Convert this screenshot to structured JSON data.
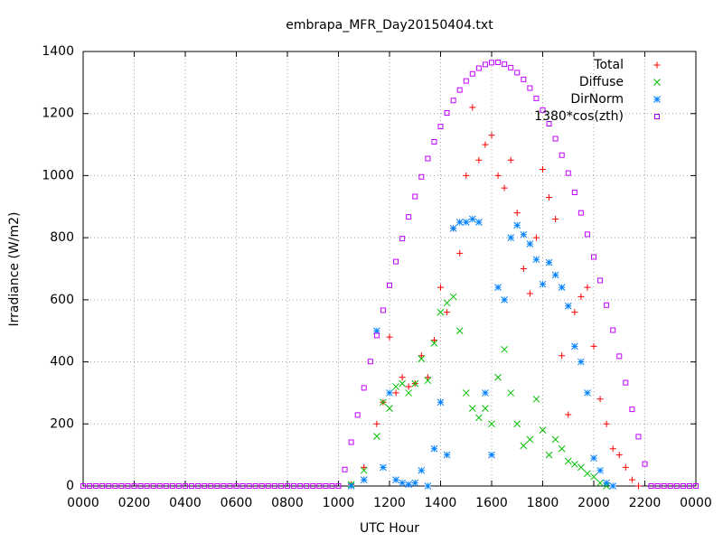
{
  "chart_data": {
    "type": "scatter",
    "title": "embrapa_MFR_Day20150404.txt",
    "x_label": "UTC Hour",
    "y_label": "Irradiance (W/m2)",
    "xlim": [
      0,
      24
    ],
    "ylim": [
      0,
      1400
    ],
    "xticks": [
      {
        "value": 0,
        "label": "0000"
      },
      {
        "value": 2,
        "label": "0200"
      },
      {
        "value": 4,
        "label": "0400"
      },
      {
        "value": 6,
        "label": "0600"
      },
      {
        "value": 8,
        "label": "0800"
      },
      {
        "value": 10,
        "label": "1000"
      },
      {
        "value": 12,
        "label": "1200"
      },
      {
        "value": 14,
        "label": "1400"
      },
      {
        "value": 16,
        "label": "1600"
      },
      {
        "value": 18,
        "label": "1800"
      },
      {
        "value": 20,
        "label": "2000"
      },
      {
        "value": 22,
        "label": "2200"
      },
      {
        "value": 24,
        "label": "0000"
      }
    ],
    "yticks": [
      0,
      200,
      400,
      600,
      800,
      1000,
      1200,
      1400
    ],
    "grid": true,
    "legend": "top-right",
    "series": [
      {
        "name": "Total",
        "color": "#ff0000",
        "marker": "plus",
        "x": [
          10.5,
          11,
          11.5,
          11.75,
          12,
          12.25,
          12.5,
          12.75,
          13,
          13.25,
          13.5,
          13.75,
          14,
          14.25,
          14.5,
          14.75,
          15,
          15.25,
          15.5,
          15.75,
          16,
          16.25,
          16.5,
          16.75,
          17,
          17.25,
          17.5,
          17.75,
          18,
          18.25,
          18.5,
          18.75,
          19,
          19.25,
          19.5,
          19.75,
          20,
          20.25,
          20.5,
          20.75,
          21,
          21.25,
          21.5,
          21.75
        ],
        "values": [
          5,
          60,
          200,
          270,
          480,
          300,
          350,
          320,
          330,
          420,
          350,
          470,
          640,
          560,
          830,
          750,
          1000,
          1220,
          1050,
          1100,
          1130,
          1000,
          960,
          1050,
          880,
          700,
          620,
          800,
          1020,
          930,
          860,
          420,
          230,
          560,
          610,
          640,
          450,
          280,
          200,
          120,
          100,
          60,
          20,
          0
        ]
      },
      {
        "name": "Diffuse",
        "color": "#00c000",
        "marker": "cross",
        "x": [
          10.5,
          11,
          11.5,
          11.75,
          12,
          12.25,
          12.5,
          12.75,
          13,
          13.25,
          13.5,
          13.75,
          14,
          14.25,
          14.5,
          14.75,
          15,
          15.25,
          15.5,
          15.75,
          16,
          16.25,
          16.5,
          16.75,
          17,
          17.25,
          17.5,
          17.75,
          18,
          18.25,
          18.5,
          18.75,
          19,
          19.25,
          19.5,
          19.75,
          20,
          20.25,
          20.5
        ],
        "values": [
          5,
          50,
          160,
          270,
          250,
          320,
          330,
          300,
          330,
          410,
          340,
          460,
          560,
          590,
          610,
          500,
          300,
          250,
          220,
          250,
          200,
          350,
          440,
          300,
          200,
          130,
          150,
          280,
          180,
          100,
          150,
          120,
          80,
          70,
          60,
          40,
          30,
          10,
          0
        ]
      },
      {
        "name": "DirNorm",
        "color": "#0080ff",
        "marker": "star",
        "x": [
          10.5,
          11,
          11.5,
          11.75,
          12,
          12.25,
          12.5,
          12.75,
          13,
          13.25,
          13.5,
          13.75,
          14,
          14.25,
          14.5,
          14.75,
          15,
          15.25,
          15.5,
          15.75,
          16,
          16.25,
          16.5,
          16.75,
          17,
          17.25,
          17.5,
          17.75,
          18,
          18.25,
          18.5,
          18.75,
          19,
          19.25,
          19.5,
          19.75,
          20,
          20.25,
          20.5,
          20.75
        ],
        "values": [
          0,
          20,
          500,
          60,
          300,
          20,
          10,
          5,
          10,
          50,
          0,
          120,
          270,
          100,
          830,
          850,
          850,
          860,
          850,
          300,
          100,
          640,
          600,
          800,
          840,
          810,
          780,
          730,
          650,
          720,
          680,
          640,
          580,
          450,
          400,
          300,
          90,
          50,
          10,
          0
        ]
      },
      {
        "name": "1380*cos(zth)",
        "color": "#c000ff",
        "marker": "square",
        "x": [
          0,
          0.25,
          0.5,
          0.75,
          1,
          1.25,
          1.5,
          1.75,
          2,
          2.25,
          2.5,
          2.75,
          3,
          3.25,
          3.5,
          3.75,
          4,
          4.25,
          4.5,
          4.75,
          5,
          5.25,
          5.5,
          5.75,
          6,
          6.25,
          6.5,
          6.75,
          7,
          7.25,
          7.5,
          7.75,
          8,
          8.25,
          8.5,
          8.75,
          9,
          9.25,
          9.5,
          9.75,
          10,
          10.25,
          10.5,
          10.75,
          11,
          11.25,
          11.5,
          11.75,
          12,
          12.25,
          12.5,
          12.75,
          13,
          13.25,
          13.5,
          13.75,
          14,
          14.25,
          14.5,
          14.75,
          15,
          15.25,
          15.5,
          15.75,
          16,
          16.25,
          16.5,
          16.75,
          17,
          17.25,
          17.5,
          17.75,
          18,
          18.25,
          18.5,
          18.75,
          19,
          19.25,
          19.5,
          19.75,
          20,
          20.25,
          20.5,
          20.75,
          21,
          21.25,
          21.5,
          21.75,
          22,
          22.25,
          22.5,
          22.75,
          23,
          23.25,
          23.5,
          23.75,
          24
        ],
        "values": [
          0,
          0,
          0,
          0,
          0,
          0,
          0,
          0,
          0,
          0,
          0,
          0,
          0,
          0,
          0,
          0,
          0,
          0,
          0,
          0,
          0,
          0,
          0,
          0,
          0,
          0,
          0,
          0,
          0,
          0,
          0,
          0,
          0,
          0,
          0,
          0,
          0,
          0,
          0,
          0,
          0,
          53,
          141,
          229,
          316,
          401,
          485,
          566,
          647,
          723,
          797,
          867,
          933,
          996,
          1055,
          1109,
          1158,
          1202,
          1242,
          1276,
          1305,
          1328,
          1346,
          1358,
          1364,
          1365,
          1359,
          1348,
          1332,
          1310,
          1282,
          1249,
          1211,
          1167,
          1119,
          1066,
          1008,
          946,
          880,
          811,
          738,
          662,
          583,
          502,
          418,
          333,
          247,
          159,
          71,
          0,
          0,
          0,
          0,
          0,
          0,
          0,
          0
        ]
      }
    ]
  }
}
